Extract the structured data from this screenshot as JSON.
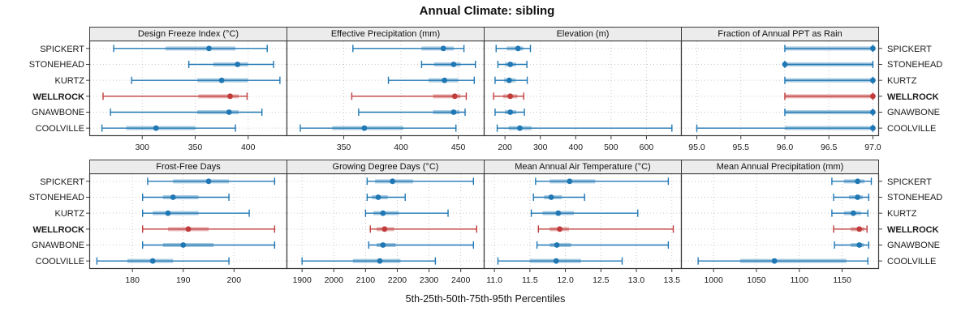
{
  "title": "Annual Climate: sibling",
  "xlab": "5th-25th-50th-75th-95th Percentiles",
  "stations": [
    "SPICKERT",
    "STONEHEAD",
    "KURTZ",
    "WELLROCK",
    "GNAWBONE",
    "COOLVILLE"
  ],
  "highlight_station": "WELLROCK",
  "colors": {
    "normal": "#1f77b4",
    "normal_band": "rgba(31,119,180,0.38)",
    "highlight": "#c13b3b",
    "highlight_band": "rgba(193,59,59,0.38)",
    "border": "#3a3a3a",
    "grid": "#c9c9c9",
    "strip_bg": "#ececec"
  },
  "chart_data": {
    "type": "dotplot-percentiles",
    "percentiles": [
      5,
      25,
      50,
      75,
      95
    ],
    "marker": "dot = 50th percentile, thick band = 25th-75th, whiskers = 5th-95th",
    "row_labels": [
      "SPICKERT",
      "STONEHEAD",
      "KURTZ",
      "WELLROCK",
      "GNAWBONE",
      "COOLVILLE"
    ],
    "panels": [
      {
        "title": "Design Freeze Index (°C)",
        "xlim": [
          250,
          437
        ],
        "ticks": [
          "300",
          "350",
          "400"
        ],
        "series": [
          [
            273,
            322,
            363,
            388,
            418
          ],
          [
            344,
            367,
            390,
            400,
            424
          ],
          [
            290,
            352,
            375,
            400,
            430
          ],
          [
            263,
            353,
            383,
            391,
            399
          ],
          [
            270,
            352,
            382,
            391,
            413
          ],
          [
            262,
            285,
            313,
            350,
            388
          ]
        ]
      },
      {
        "title": "Effective Precipitation (mm)",
        "xlim": [
          300,
          473
        ],
        "ticks": [
          "350",
          "400",
          "450"
        ],
        "series": [
          [
            358,
            418,
            437,
            446,
            455
          ],
          [
            418,
            429,
            446,
            452,
            465
          ],
          [
            389,
            424,
            438,
            450,
            464
          ],
          [
            357,
            428,
            447,
            452,
            457
          ],
          [
            363,
            428,
            446,
            451,
            456
          ],
          [
            312,
            340,
            368,
            402,
            448
          ]
        ]
      },
      {
        "title": "Elevation (m)",
        "xlim": [
          140,
          700
        ],
        "ticks": [
          "200",
          "300",
          "400",
          "500",
          "600"
        ],
        "series": [
          [
            175,
            205,
            237,
            252,
            272
          ],
          [
            180,
            200,
            215,
            231,
            262
          ],
          [
            172,
            197,
            212,
            230,
            263
          ],
          [
            168,
            195,
            215,
            235,
            253
          ],
          [
            172,
            200,
            215,
            232,
            255
          ],
          [
            178,
            210,
            242,
            275,
            672
          ]
        ]
      },
      {
        "title": "Fraction of Annual PPT as Rain",
        "xlim": [
          94.82,
          97.07
        ],
        "ticks": [
          "95.0",
          "95.5",
          "96.0",
          "96.5",
          "97.0"
        ],
        "series": [
          [
            96,
            96,
            97,
            97,
            97
          ],
          [
            96,
            96,
            96,
            97,
            97
          ],
          [
            96,
            96,
            97,
            97,
            97
          ],
          [
            96,
            96,
            97,
            97,
            97
          ],
          [
            96,
            96,
            97,
            97,
            97
          ],
          [
            95,
            96,
            97,
            97,
            97
          ]
        ]
      },
      {
        "title": "Frost-Free Days",
        "xlim": [
          171.5,
          210.5
        ],
        "ticks": [
          "180",
          "190",
          "200"
        ],
        "series": [
          [
            183,
            188,
            195,
            199,
            208
          ],
          [
            182,
            186,
            188,
            193,
            199
          ],
          [
            182,
            184,
            187,
            193,
            203
          ],
          [
            182,
            187,
            191,
            195,
            208
          ],
          [
            182,
            186,
            190,
            196,
            208
          ],
          [
            173,
            179,
            184,
            188,
            199
          ]
        ]
      },
      {
        "title": "Growing Degree Days (°C)",
        "xlim": [
          1851,
          2475
        ],
        "ticks": [
          "1900",
          "2000",
          "2100",
          "2200",
          "2300",
          "2400"
        ],
        "series": [
          [
            2105,
            2130,
            2185,
            2250,
            2440
          ],
          [
            2105,
            2120,
            2140,
            2170,
            2225
          ],
          [
            2100,
            2125,
            2155,
            2205,
            2360
          ],
          [
            2115,
            2135,
            2160,
            2190,
            2450
          ],
          [
            2110,
            2135,
            2155,
            2195,
            2440
          ],
          [
            1900,
            2060,
            2145,
            2210,
            2320
          ]
        ]
      },
      {
        "title": "Mean Annual Air Temperature (°C)",
        "xlim": [
          10.85,
          13.64
        ],
        "ticks": [
          "11.0",
          "11.5",
          "12.0",
          "12.5",
          "13.0",
          "13.5"
        ],
        "series": [
          [
            11.58,
            11.78,
            12.06,
            12.42,
            13.45
          ],
          [
            11.55,
            11.7,
            11.8,
            11.95,
            12.27
          ],
          [
            11.52,
            11.68,
            11.9,
            12.12,
            13.02
          ],
          [
            11.62,
            11.78,
            11.92,
            12.05,
            13.52
          ],
          [
            11.6,
            11.78,
            11.88,
            12.08,
            13.45
          ],
          [
            11.05,
            11.5,
            11.87,
            12.22,
            12.8
          ]
        ]
      },
      {
        "title": "Mean Annual Precipitation (mm)",
        "xlim": [
          962,
          1193
        ],
        "ticks": [
          "1000",
          "1050",
          "1100",
          "1150"
        ],
        "series": [
          [
            1138,
            1152,
            1168,
            1176,
            1184
          ],
          [
            1140,
            1158,
            1168,
            1174,
            1181
          ],
          [
            1138,
            1152,
            1163,
            1172,
            1180
          ],
          [
            1140,
            1160,
            1170,
            1176,
            1179
          ],
          [
            1141,
            1160,
            1170,
            1175,
            1181
          ],
          [
            982,
            1031,
            1071,
            1155,
            1180
          ]
        ]
      }
    ]
  }
}
